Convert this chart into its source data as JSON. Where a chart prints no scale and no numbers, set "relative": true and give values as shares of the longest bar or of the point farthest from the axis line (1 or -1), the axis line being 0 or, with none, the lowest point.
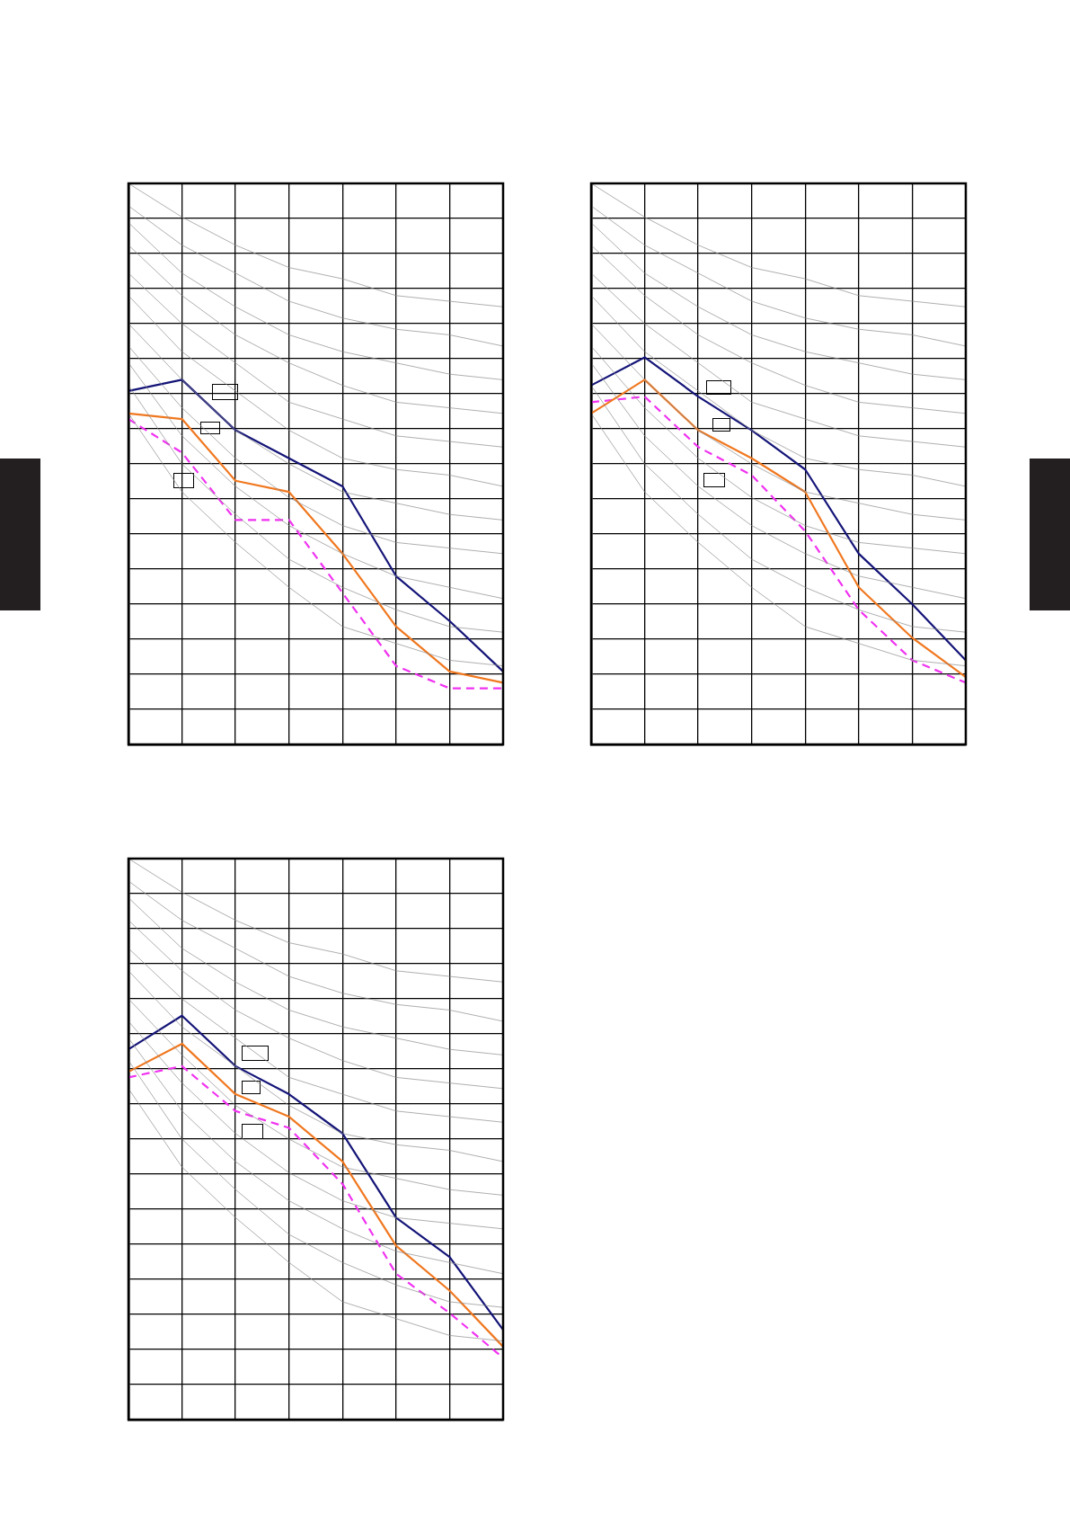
{
  "chart_data": [
    {
      "type": "line",
      "relative": true,
      "grid": true,
      "legend": false,
      "categories": [
        null,
        null,
        null,
        null,
        null,
        null,
        null,
        null
      ],
      "series": [
        {
          "color": "#8c8c8c",
          "values": [
            1,
            0.94,
            0.89,
            0.85,
            0.83,
            0.8,
            0.79,
            0.78
          ]
        },
        {
          "color": "#8c8c8c",
          "values": [
            0.96,
            0.89,
            0.84,
            0.79,
            0.76,
            0.74,
            0.73,
            0.71
          ]
        },
        {
          "color": "#8c8c8c",
          "values": [
            0.93,
            0.84,
            0.78,
            0.73,
            0.7,
            0.68,
            0.66,
            0.65
          ]
        },
        {
          "color": "#8c8c8c",
          "values": [
            0.89,
            0.8,
            0.73,
            0.68,
            0.64,
            0.61,
            0.6,
            0.59
          ]
        },
        {
          "color": "#8c8c8c",
          "values": [
            0.84,
            0.75,
            0.68,
            0.61,
            0.58,
            0.55,
            0.54,
            0.53
          ]
        },
        {
          "color": "#8c8c8c",
          "values": [
            0.8,
            0.7,
            null,
            0.56,
            0.51,
            0.49,
            0.48,
            0.46
          ]
        },
        {
          "color": "#8c8c8c",
          "values": [
            0.75,
            0.65,
            0.56,
            0.5,
            0.45,
            0.43,
            0.41,
            0.4
          ]
        },
        {
          "color": "#8c8c8c",
          "values": [
            0.71,
            0.6,
            0.51,
            0.44,
            0.39,
            0.36,
            0.35,
            0.34
          ]
        },
        {
          "color": "#8c8c8c",
          "values": [
            0.68,
            0.55,
            0.46,
            0.39,
            0.34,
            0.3,
            0.28,
            0.26
          ]
        },
        {
          "color": "#8c8c8c",
          "values": [
            0.64,
            0.5,
            0.41,
            0.33,
            0.28,
            0.24,
            0.21,
            0.2
          ]
        },
        {
          "color": "#8c8c8c",
          "values": [
            0.59,
            0.45,
            0.36,
            0.28,
            0.21,
            0.18,
            0.15,
            0.14
          ]
        },
        {
          "color": "#141478",
          "values": [
            0.63,
            0.65,
            0.56,
            0.51,
            0.46,
            0.3,
            0.22,
            0.13
          ]
        },
        {
          "color": "#f07820",
          "values": [
            0.59,
            0.58,
            0.47,
            0.45,
            0.34,
            0.21,
            0.13,
            0.11
          ]
        },
        {
          "color": "#f032f0",
          "line_style": "dashed",
          "values": [
            0.58,
            0.52,
            0.4,
            0.4,
            0.27,
            0.14,
            0.1,
            0.1
          ]
        }
      ]
    },
    {
      "type": "line",
      "relative": true,
      "grid": true,
      "legend": false,
      "categories": [
        null,
        null,
        null,
        null,
        null,
        null,
        null,
        null
      ],
      "series": [
        {
          "color": "#8c8c8c",
          "values": [
            1,
            0.94,
            0.89,
            0.85,
            0.83,
            0.8,
            0.79,
            0.78
          ]
        },
        {
          "color": "#8c8c8c",
          "values": [
            0.96,
            0.89,
            0.84,
            0.79,
            0.76,
            0.74,
            0.73,
            0.71
          ]
        },
        {
          "color": "#8c8c8c",
          "values": [
            0.93,
            0.84,
            0.78,
            0.73,
            0.7,
            0.68,
            0.66,
            0.65
          ]
        },
        {
          "color": "#8c8c8c",
          "values": [
            0.89,
            0.8,
            0.73,
            0.68,
            0.64,
            0.61,
            0.6,
            0.59
          ]
        },
        {
          "color": "#8c8c8c",
          "values": [
            0.84,
            0.75,
            0.68,
            0.61,
            0.58,
            0.55,
            0.54,
            0.53
          ]
        },
        {
          "color": "#8c8c8c",
          "values": [
            0.8,
            0.7,
            0.63,
            0.56,
            0.51,
            0.49,
            0.48,
            0.46
          ]
        },
        {
          "color": "#8c8c8c",
          "values": [
            0.75,
            0.65,
            0.56,
            0.5,
            0.45,
            0.43,
            0.41,
            0.4
          ]
        },
        {
          "color": "#8c8c8c",
          "values": [
            0.71,
            0.6,
            0.51,
            0.44,
            0.39,
            0.36,
            0.35,
            0.34
          ]
        },
        {
          "color": "#8c8c8c",
          "values": [
            0.68,
            0.55,
            0.46,
            0.39,
            0.34,
            0.3,
            0.28,
            0.26
          ]
        },
        {
          "color": "#8c8c8c",
          "values": [
            0.64,
            0.5,
            0.41,
            0.33,
            0.28,
            0.24,
            0.21,
            0.2
          ]
        },
        {
          "color": "#8c8c8c",
          "values": [
            0.59,
            0.45,
            0.36,
            0.28,
            0.21,
            0.18,
            0.15,
            0.14
          ]
        },
        {
          "color": "#141478",
          "values": [
            0.64,
            0.69,
            0.62,
            0.56,
            0.49,
            0.34,
            0.25,
            0.15
          ]
        },
        {
          "color": "#f07820",
          "values": [
            0.59,
            0.65,
            0.56,
            0.51,
            0.45,
            0.28,
            0.19,
            0.12
          ]
        },
        {
          "color": "#f032f0",
          "line_style": "dashed",
          "values": [
            0.61,
            0.62,
            0.53,
            0.48,
            0.38,
            0.24,
            0.15,
            0.11
          ]
        }
      ]
    },
    {
      "type": "line",
      "relative": true,
      "grid": true,
      "legend": false,
      "categories": [
        null,
        null,
        null,
        null,
        null,
        null,
        null,
        null
      ],
      "series": [
        {
          "color": "#8c8c8c",
          "values": [
            1,
            0.94,
            0.89,
            0.85,
            0.83,
            0.8,
            0.79,
            0.78
          ]
        },
        {
          "color": "#8c8c8c",
          "values": [
            0.96,
            0.89,
            0.84,
            0.79,
            0.76,
            0.74,
            0.73,
            0.71
          ]
        },
        {
          "color": "#8c8c8c",
          "values": [
            0.93,
            0.84,
            0.78,
            0.73,
            0.7,
            0.68,
            0.66,
            0.65
          ]
        },
        {
          "color": "#8c8c8c",
          "values": [
            0.89,
            0.8,
            0.73,
            0.68,
            0.64,
            0.61,
            0.6,
            0.59
          ]
        },
        {
          "color": "#8c8c8c",
          "values": [
            0.84,
            0.75,
            0.68,
            0.61,
            0.58,
            0.55,
            0.54,
            0.53
          ]
        },
        {
          "color": "#8c8c8c",
          "values": [
            0.8,
            0.7,
            0.63,
            0.56,
            0.51,
            0.49,
            0.48,
            0.46
          ]
        },
        {
          "color": "#8c8c8c",
          "values": [
            0.75,
            0.65,
            0.56,
            0.5,
            0.45,
            0.43,
            0.41,
            0.4
          ]
        },
        {
          "color": "#8c8c8c",
          "values": [
            0.71,
            0.6,
            0.51,
            0.44,
            0.39,
            0.36,
            0.35,
            0.34
          ]
        },
        {
          "color": "#8c8c8c",
          "values": [
            0.68,
            0.55,
            0.46,
            0.39,
            0.34,
            0.3,
            0.28,
            0.26
          ]
        },
        {
          "color": "#8c8c8c",
          "values": [
            0.64,
            0.5,
            0.41,
            0.33,
            0.28,
            0.24,
            0.21,
            0.2
          ]
        },
        {
          "color": "#8c8c8c",
          "values": [
            0.59,
            0.45,
            0.36,
            0.28,
            0.21,
            0.18,
            0.15,
            0.14
          ]
        },
        {
          "color": "#141478",
          "values": [
            0.66,
            0.72,
            0.63,
            0.58,
            0.51,
            0.36,
            0.29,
            0.16
          ]
        },
        {
          "color": "#f07820",
          "values": [
            0.62,
            0.67,
            0.58,
            0.54,
            0.46,
            0.31,
            0.23,
            0.13
          ]
        },
        {
          "color": "#f032f0",
          "line_style": "dashed",
          "values": [
            0.61,
            0.63,
            0.55,
            0.52,
            0.42,
            0.26,
            0.19,
            0.11
          ]
        }
      ]
    }
  ]
}
